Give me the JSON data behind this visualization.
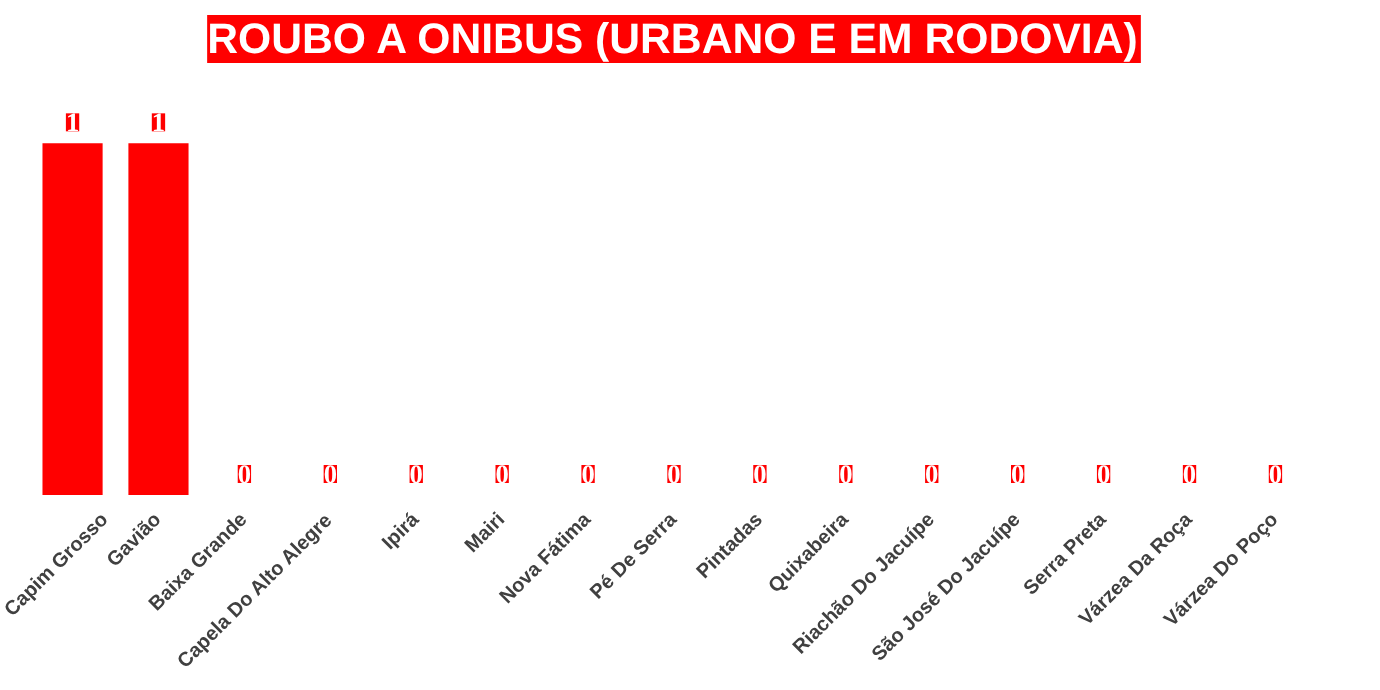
{
  "chart_data": {
    "type": "bar",
    "title": "ROUBO A ONIBUS (URBANO E EM RODOVIA)",
    "categories": [
      "Capim Grosso",
      "Gavião",
      "Baixa Grande",
      "Capela Do Alto Alegre",
      "Ipirá",
      "Mairi",
      "Nova Fátima",
      "Pé De Serra",
      "Pintadas",
      "Quixabeira",
      "Riachão Do Jacuípe",
      "São José Do Jacuípe",
      "Serra Preta",
      "Várzea Da Roça",
      "Várzea Do Poço"
    ],
    "values": [
      1,
      1,
      0,
      0,
      0,
      0,
      0,
      0,
      0,
      0,
      0,
      0,
      0,
      0,
      0
    ],
    "color": "#ff0000",
    "data_labels": true,
    "grid": false
  }
}
